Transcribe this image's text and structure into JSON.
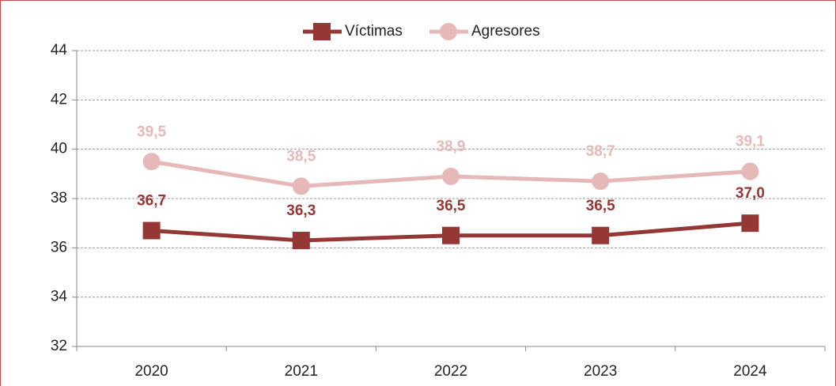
{
  "chart_data": {
    "type": "line",
    "categories": [
      "2020",
      "2021",
      "2022",
      "2023",
      "2024"
    ],
    "series": [
      {
        "name": "Víctimas",
        "color": "#953735",
        "marker": "square",
        "values": [
          36.7,
          36.3,
          36.5,
          36.5,
          37.0
        ],
        "value_labels": [
          "36,7",
          "36,3",
          "36,5",
          "36,5",
          "37,0"
        ]
      },
      {
        "name": "Agresores",
        "color": "#e6b9b8",
        "marker": "circle",
        "values": [
          39.5,
          38.5,
          38.9,
          38.7,
          39.1
        ],
        "value_labels": [
          "39,5",
          "38,5",
          "38,9",
          "38,7",
          "39,1"
        ]
      }
    ],
    "ylim": [
      32,
      44
    ],
    "yticks": [
      32,
      34,
      36,
      38,
      40,
      42,
      44
    ],
    "grid": true
  }
}
